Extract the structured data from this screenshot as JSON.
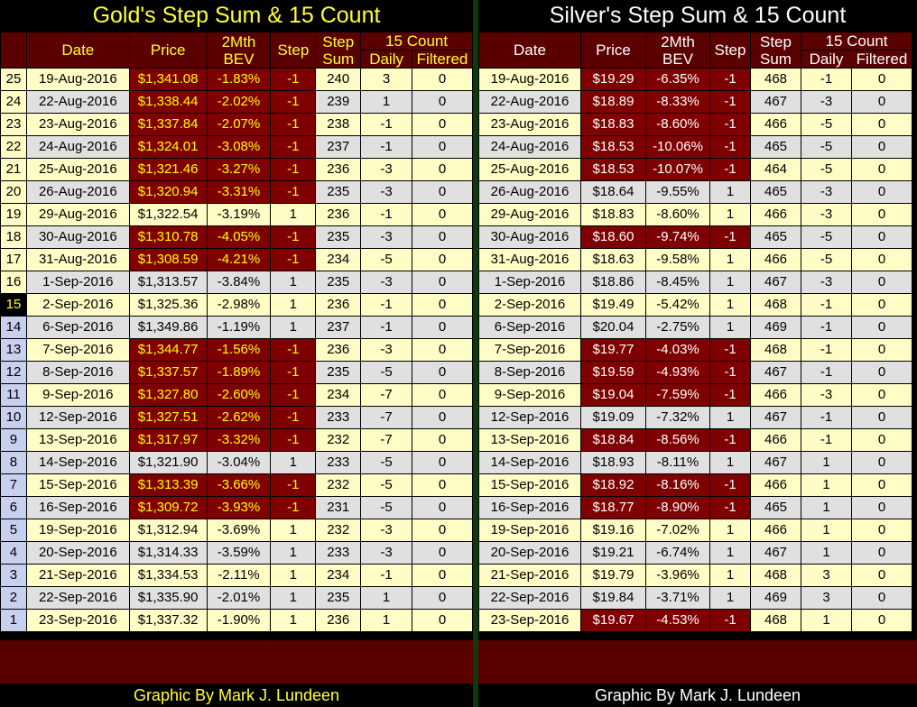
{
  "gold": {
    "title": "Gold's Step Sum & 15 Count",
    "footer": "Graphic By Mark J. Lundeen",
    "headers": {
      "num": "",
      "date": "Date",
      "price": "Price",
      "bev_1": "2Mth",
      "bev_2": "BEV",
      "step": "Step",
      "stepsum_1": "Step",
      "stepsum_2": "Sum",
      "count15": "15 Count",
      "daily": "Daily",
      "filtered": "Filtered"
    },
    "rows": [
      {
        "n": "25",
        "date": "19-Aug-2016",
        "price": "$1,341.08",
        "bev": "-1.83%",
        "step": "-1",
        "sum": "240",
        "daily": "3",
        "filtered": "0"
      },
      {
        "n": "24",
        "date": "22-Aug-2016",
        "price": "$1,338.44",
        "bev": "-2.02%",
        "step": "-1",
        "sum": "239",
        "daily": "1",
        "filtered": "0"
      },
      {
        "n": "23",
        "date": "23-Aug-2016",
        "price": "$1,337.84",
        "bev": "-2.07%",
        "step": "-1",
        "sum": "238",
        "daily": "-1",
        "filtered": "0"
      },
      {
        "n": "22",
        "date": "24-Aug-2016",
        "price": "$1,324.01",
        "bev": "-3.08%",
        "step": "-1",
        "sum": "237",
        "daily": "-1",
        "filtered": "0"
      },
      {
        "n": "21",
        "date": "25-Aug-2016",
        "price": "$1,321.46",
        "bev": "-3.27%",
        "step": "-1",
        "sum": "236",
        "daily": "-3",
        "filtered": "0"
      },
      {
        "n": "20",
        "date": "26-Aug-2016",
        "price": "$1,320.94",
        "bev": "-3.31%",
        "step": "-1",
        "sum": "235",
        "daily": "-3",
        "filtered": "0"
      },
      {
        "n": "19",
        "date": "29-Aug-2016",
        "price": "$1,322.54",
        "bev": "-3.19%",
        "step": "1",
        "sum": "236",
        "daily": "-1",
        "filtered": "0"
      },
      {
        "n": "18",
        "date": "30-Aug-2016",
        "price": "$1,310.78",
        "bev": "-4.05%",
        "step": "-1",
        "sum": "235",
        "daily": "-3",
        "filtered": "0"
      },
      {
        "n": "17",
        "date": "31-Aug-2016",
        "price": "$1,308.59",
        "bev": "-4.21%",
        "step": "-1",
        "sum": "234",
        "daily": "-5",
        "filtered": "0"
      },
      {
        "n": "16",
        "date": "1-Sep-2016",
        "price": "$1,313.57",
        "bev": "-3.84%",
        "step": "1",
        "sum": "235",
        "daily": "-3",
        "filtered": "0"
      },
      {
        "n": "15",
        "date": "2-Sep-2016",
        "price": "$1,325.36",
        "bev": "-2.98%",
        "step": "1",
        "sum": "236",
        "daily": "-1",
        "filtered": "0"
      },
      {
        "n": "14",
        "date": "6-Sep-2016",
        "price": "$1,349.86",
        "bev": "-1.19%",
        "step": "1",
        "sum": "237",
        "daily": "-1",
        "filtered": "0"
      },
      {
        "n": "13",
        "date": "7-Sep-2016",
        "price": "$1,344.77",
        "bev": "-1.56%",
        "step": "-1",
        "sum": "236",
        "daily": "-3",
        "filtered": "0"
      },
      {
        "n": "12",
        "date": "8-Sep-2016",
        "price": "$1,337.57",
        "bev": "-1.89%",
        "step": "-1",
        "sum": "235",
        "daily": "-5",
        "filtered": "0"
      },
      {
        "n": "11",
        "date": "9-Sep-2016",
        "price": "$1,327.80",
        "bev": "-2.60%",
        "step": "-1",
        "sum": "234",
        "daily": "-7",
        "filtered": "0"
      },
      {
        "n": "10",
        "date": "12-Sep-2016",
        "price": "$1,327.51",
        "bev": "-2.62%",
        "step": "-1",
        "sum": "233",
        "daily": "-7",
        "filtered": "0"
      },
      {
        "n": "9",
        "date": "13-Sep-2016",
        "price": "$1,317.97",
        "bev": "-3.32%",
        "step": "-1",
        "sum": "232",
        "daily": "-7",
        "filtered": "0"
      },
      {
        "n": "8",
        "date": "14-Sep-2016",
        "price": "$1,321.90",
        "bev": "-3.04%",
        "step": "1",
        "sum": "233",
        "daily": "-5",
        "filtered": "0"
      },
      {
        "n": "7",
        "date": "15-Sep-2016",
        "price": "$1,313.39",
        "bev": "-3.66%",
        "step": "-1",
        "sum": "232",
        "daily": "-5",
        "filtered": "0"
      },
      {
        "n": "6",
        "date": "16-Sep-2016",
        "price": "$1,309.72",
        "bev": "-3.93%",
        "step": "-1",
        "sum": "231",
        "daily": "-5",
        "filtered": "0"
      },
      {
        "n": "5",
        "date": "19-Sep-2016",
        "price": "$1,312.94",
        "bev": "-3.69%",
        "step": "1",
        "sum": "232",
        "daily": "-3",
        "filtered": "0"
      },
      {
        "n": "4",
        "date": "20-Sep-2016",
        "price": "$1,314.33",
        "bev": "-3.59%",
        "step": "1",
        "sum": "233",
        "daily": "-3",
        "filtered": "0"
      },
      {
        "n": "3",
        "date": "21-Sep-2016",
        "price": "$1,334.53",
        "bev": "-2.11%",
        "step": "1",
        "sum": "234",
        "daily": "-1",
        "filtered": "0"
      },
      {
        "n": "2",
        "date": "22-Sep-2016",
        "price": "$1,335.90",
        "bev": "-2.01%",
        "step": "1",
        "sum": "235",
        "daily": "1",
        "filtered": "0"
      },
      {
        "n": "1",
        "date": "23-Sep-2016",
        "price": "$1,337.32",
        "bev": "-1.90%",
        "step": "1",
        "sum": "236",
        "daily": "1",
        "filtered": "0"
      }
    ]
  },
  "silver": {
    "title": "Silver's Step Sum & 15 Count",
    "footer": "Graphic By Mark J. Lundeen",
    "headers": {
      "date": "Date",
      "price": "Price",
      "bev_1": "2Mth",
      "bev_2": "BEV",
      "step": "Step",
      "stepsum_1": "Step",
      "stepsum_2": "Sum",
      "count15": "15 Count",
      "daily": "Daily",
      "filtered": "Filtered"
    },
    "rows": [
      {
        "date": "19-Aug-2016",
        "price": "$19.29",
        "bev": "-6.35%",
        "step": "-1",
        "sum": "468",
        "daily": "-1",
        "filtered": "0"
      },
      {
        "date": "22-Aug-2016",
        "price": "$18.89",
        "bev": "-8.33%",
        "step": "-1",
        "sum": "467",
        "daily": "-3",
        "filtered": "0"
      },
      {
        "date": "23-Aug-2016",
        "price": "$18.83",
        "bev": "-8.60%",
        "step": "-1",
        "sum": "466",
        "daily": "-5",
        "filtered": "0"
      },
      {
        "date": "24-Aug-2016",
        "price": "$18.53",
        "bev": "-10.06%",
        "step": "-1",
        "sum": "465",
        "daily": "-5",
        "filtered": "0"
      },
      {
        "date": "25-Aug-2016",
        "price": "$18.53",
        "bev": "-10.07%",
        "step": "-1",
        "sum": "464",
        "daily": "-5",
        "filtered": "0"
      },
      {
        "date": "26-Aug-2016",
        "price": "$18.64",
        "bev": "-9.55%",
        "step": "1",
        "sum": "465",
        "daily": "-3",
        "filtered": "0"
      },
      {
        "date": "29-Aug-2016",
        "price": "$18.83",
        "bev": "-8.60%",
        "step": "1",
        "sum": "466",
        "daily": "-3",
        "filtered": "0"
      },
      {
        "date": "30-Aug-2016",
        "price": "$18.60",
        "bev": "-9.74%",
        "step": "-1",
        "sum": "465",
        "daily": "-5",
        "filtered": "0"
      },
      {
        "date": "31-Aug-2016",
        "price": "$18.63",
        "bev": "-9.58%",
        "step": "1",
        "sum": "466",
        "daily": "-5",
        "filtered": "0"
      },
      {
        "date": "1-Sep-2016",
        "price": "$18.86",
        "bev": "-8.45%",
        "step": "1",
        "sum": "467",
        "daily": "-3",
        "filtered": "0"
      },
      {
        "date": "2-Sep-2016",
        "price": "$19.49",
        "bev": "-5.42%",
        "step": "1",
        "sum": "468",
        "daily": "-1",
        "filtered": "0"
      },
      {
        "date": "6-Sep-2016",
        "price": "$20.04",
        "bev": "-2.75%",
        "step": "1",
        "sum": "469",
        "daily": "-1",
        "filtered": "0"
      },
      {
        "date": "7-Sep-2016",
        "price": "$19.77",
        "bev": "-4.03%",
        "step": "-1",
        "sum": "468",
        "daily": "-1",
        "filtered": "0"
      },
      {
        "date": "8-Sep-2016",
        "price": "$19.59",
        "bev": "-4.93%",
        "step": "-1",
        "sum": "467",
        "daily": "-1",
        "filtered": "0"
      },
      {
        "date": "9-Sep-2016",
        "price": "$19.04",
        "bev": "-7.59%",
        "step": "-1",
        "sum": "466",
        "daily": "-3",
        "filtered": "0"
      },
      {
        "date": "12-Sep-2016",
        "price": "$19.09",
        "bev": "-7.32%",
        "step": "1",
        "sum": "467",
        "daily": "-1",
        "filtered": "0"
      },
      {
        "date": "13-Sep-2016",
        "price": "$18.84",
        "bev": "-8.56%",
        "step": "-1",
        "sum": "466",
        "daily": "-1",
        "filtered": "0"
      },
      {
        "date": "14-Sep-2016",
        "price": "$18.93",
        "bev": "-8.11%",
        "step": "1",
        "sum": "467",
        "daily": "1",
        "filtered": "0"
      },
      {
        "date": "15-Sep-2016",
        "price": "$18.92",
        "bev": "-8.16%",
        "step": "-1",
        "sum": "466",
        "daily": "1",
        "filtered": "0"
      },
      {
        "date": "16-Sep-2016",
        "price": "$18.77",
        "bev": "-8.90%",
        "step": "-1",
        "sum": "465",
        "daily": "1",
        "filtered": "0"
      },
      {
        "date": "19-Sep-2016",
        "price": "$19.16",
        "bev": "-7.02%",
        "step": "1",
        "sum": "466",
        "daily": "1",
        "filtered": "0"
      },
      {
        "date": "20-Sep-2016",
        "price": "$19.21",
        "bev": "-6.74%",
        "step": "1",
        "sum": "467",
        "daily": "1",
        "filtered": "0"
      },
      {
        "date": "21-Sep-2016",
        "price": "$19.79",
        "bev": "-3.96%",
        "step": "1",
        "sum": "468",
        "daily": "3",
        "filtered": "0"
      },
      {
        "date": "22-Sep-2016",
        "price": "$19.84",
        "bev": "-3.71%",
        "step": "1",
        "sum": "469",
        "daily": "3",
        "filtered": "0"
      },
      {
        "date": "23-Sep-2016",
        "price": "$19.67",
        "bev": "-4.53%",
        "step": "-1",
        "sum": "468",
        "daily": "1",
        "filtered": "0"
      }
    ]
  },
  "colors": {
    "header_bg": "#5a0000",
    "down_day_bg": "#7f0000",
    "cream_row": "#fffcc6",
    "grey_row": "#e0e0e0",
    "gold_title": "#ffff33",
    "silver_title": "#ffffff",
    "divider": "#0c3a0c"
  }
}
